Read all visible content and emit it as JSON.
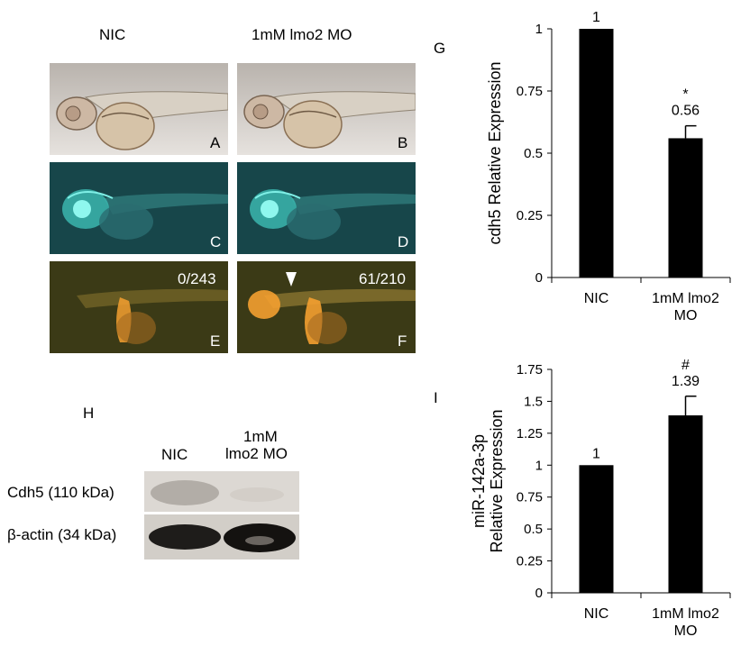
{
  "figure": {
    "col_left_title": "NIC",
    "col_right_title": "1mM lmo2 MO",
    "panel_letters": {
      "A": "A",
      "B": "B",
      "C": "C",
      "D": "D",
      "E": "E",
      "F": "F",
      "G": "G",
      "H": "H",
      "I": "I"
    },
    "counts": {
      "E": "0/243",
      "F": "61/210"
    }
  },
  "western": {
    "col1": "NIC",
    "col2_line1": "1mM",
    "col2_line2": "lmo2 MO",
    "row1": "Cdh5  (110 kDa)",
    "row2": "β-actin (34 kDa)"
  },
  "colors": {
    "bar": "#000000",
    "bf_bg": "#cfcac6",
    "gfp_bg": "#17464a",
    "gfp": "#66f0e6",
    "rfp_bg": "#3b3a16",
    "rfp": "#f4a030"
  },
  "chart_data": [
    {
      "type": "bar",
      "categories": [
        "NIC",
        "1mM lmo2\nMO"
      ],
      "values": [
        1,
        0.56
      ],
      "errors": [
        0,
        0.05
      ],
      "data_labels": [
        "1",
        "0.56"
      ],
      "annotations": [
        "",
        "*"
      ],
      "ylabel": "cdh5 Relative Expression",
      "ylim": [
        0,
        1
      ],
      "yticks": [
        0,
        0.25,
        0.5,
        0.75,
        1
      ],
      "ytick_labels": [
        "0",
        "0.25",
        "0.5",
        "0.75",
        "1"
      ],
      "grid": false
    },
    {
      "type": "bar",
      "categories": [
        "NIC",
        "1mM lmo2\nMO"
      ],
      "values": [
        1,
        1.39
      ],
      "errors": [
        0,
        0.15
      ],
      "data_labels": [
        "1",
        "1.39"
      ],
      "annotations": [
        "",
        "#"
      ],
      "ylabel": "miR-142a-3p\nRelative Expression",
      "ylim": [
        0,
        1.75
      ],
      "yticks": [
        0,
        0.25,
        0.5,
        0.75,
        1,
        1.25,
        1.5,
        1.75
      ],
      "ytick_labels": [
        "0",
        "0.25",
        "0.5",
        "0.75",
        "1",
        "1.25",
        "1.5",
        "1.75"
      ],
      "grid": false
    }
  ]
}
